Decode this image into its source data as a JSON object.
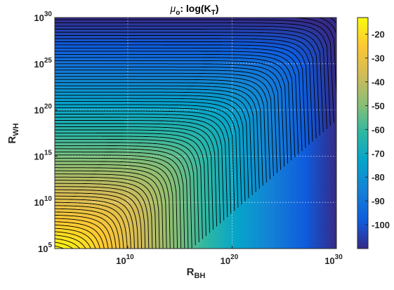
{
  "chart_data": {
    "type": "heatmap",
    "title_parts": {
      "symbol": "μ",
      "subscript": "o",
      "text": ": log(K",
      "text_sub": "T",
      "text_end": ")"
    },
    "xlabel": {
      "base": "R",
      "sub": "BH"
    },
    "ylabel": {
      "base": "R",
      "sub": "WH"
    },
    "x_scale": "log",
    "y_scale": "log",
    "xlim": [
      1000.0,
      1e+30
    ],
    "ylim": [
      100000.0,
      1e+30
    ],
    "x_ticks": [
      {
        "value": 10000000000.0,
        "base": "10",
        "exp": "10"
      },
      {
        "value": 1e+20,
        "base": "10",
        "exp": "20"
      },
      {
        "value": 1e+30,
        "base": "10",
        "exp": "30"
      }
    ],
    "y_ticks": [
      {
        "value": 100000.0,
        "base": "10",
        "exp": "5"
      },
      {
        "value": 10000000000.0,
        "base": "10",
        "exp": "10"
      },
      {
        "value": 1000000000000000.0,
        "base": "10",
        "exp": "15"
      },
      {
        "value": 1e+20,
        "base": "10",
        "exp": "20"
      },
      {
        "value": 1e+25,
        "base": "10",
        "exp": "25"
      },
      {
        "value": 1e+30,
        "base": "10",
        "exp": "30"
      }
    ],
    "colorbar": {
      "range": [
        -110,
        -13
      ],
      "ticks": [
        "-20",
        "-30",
        "-40",
        "-50",
        "-60",
        "-70",
        "-80",
        "-90",
        "-100"
      ],
      "tick_values": [
        -20,
        -30,
        -40,
        -50,
        -60,
        -70,
        -80,
        -90,
        -100
      ]
    },
    "grid": true,
    "colormap": "parula",
    "contour_color": "#000000"
  }
}
